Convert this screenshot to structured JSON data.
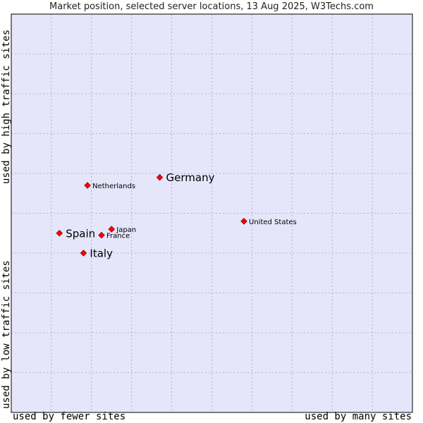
{
  "chart_data": {
    "type": "scatter",
    "title": "Market position, selected server locations, 13 Aug 2025, W3Techs.com",
    "x_axis": {
      "low_label": "used by fewer sites",
      "high_label": "used by many sites",
      "range": [
        0,
        10
      ],
      "ticks": [
        0,
        1,
        2,
        3,
        4,
        5,
        6,
        7,
        8,
        9,
        10
      ],
      "grid": true
    },
    "y_axis": {
      "low_label": "used by low traffic sites",
      "high_label": "used by high traffic sites",
      "range": [
        0,
        10
      ],
      "ticks": [
        0,
        1,
        2,
        3,
        4,
        5,
        6,
        7,
        8,
        9,
        10
      ],
      "grid": true
    },
    "points": [
      {
        "name": "Germany",
        "x": 3.7,
        "y": 5.9,
        "label_size": "large"
      },
      {
        "name": "Netherlands",
        "x": 1.9,
        "y": 5.7,
        "label_size": "small"
      },
      {
        "name": "United States",
        "x": 5.8,
        "y": 4.8,
        "label_size": "small"
      },
      {
        "name": "Japan",
        "x": 2.5,
        "y": 4.6,
        "label_size": "small"
      },
      {
        "name": "France",
        "x": 2.25,
        "y": 4.45,
        "label_size": "small"
      },
      {
        "name": "Spain",
        "x": 1.2,
        "y": 4.5,
        "label_size": "large"
      },
      {
        "name": "Italy",
        "x": 1.8,
        "y": 4.0,
        "label_size": "large"
      }
    ],
    "colors": {
      "plot_background": "#e6e6fa",
      "grid": "#a0a0c0",
      "marker": "#ff0000",
      "marker_outline": "#8b0000"
    }
  }
}
